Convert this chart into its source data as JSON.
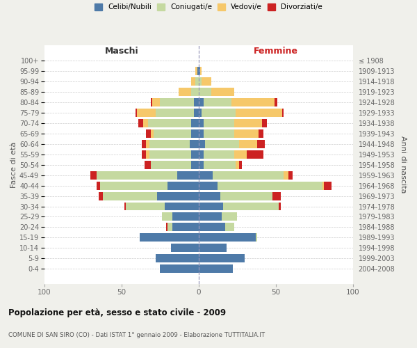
{
  "age_groups": [
    "100+",
    "95-99",
    "90-94",
    "85-89",
    "80-84",
    "75-79",
    "70-74",
    "65-69",
    "60-64",
    "55-59",
    "50-54",
    "45-49",
    "40-44",
    "35-39",
    "30-34",
    "25-29",
    "20-24",
    "15-19",
    "10-14",
    "5-9",
    "0-4"
  ],
  "birth_years": [
    "≤ 1908",
    "1909-1913",
    "1914-1918",
    "1919-1923",
    "1924-1928",
    "1929-1933",
    "1934-1938",
    "1939-1943",
    "1944-1948",
    "1949-1953",
    "1954-1958",
    "1959-1963",
    "1964-1968",
    "1969-1973",
    "1974-1978",
    "1979-1983",
    "1984-1988",
    "1989-1993",
    "1994-1998",
    "1999-2003",
    "2004-2008"
  ],
  "males": {
    "celibe": [
      0,
      1,
      0,
      0,
      3,
      3,
      5,
      5,
      6,
      5,
      5,
      14,
      20,
      27,
      22,
      17,
      17,
      38,
      18,
      28,
      25
    ],
    "coniugato": [
      0,
      0,
      2,
      5,
      22,
      25,
      28,
      24,
      26,
      27,
      26,
      52,
      44,
      35,
      25,
      7,
      3,
      0,
      0,
      0,
      0
    ],
    "vedovo": [
      0,
      1,
      3,
      8,
      5,
      12,
      3,
      2,
      2,
      2,
      0,
      0,
      0,
      0,
      0,
      0,
      0,
      0,
      0,
      0,
      0
    ],
    "divorziato": [
      0,
      0,
      0,
      0,
      1,
      1,
      3,
      3,
      3,
      3,
      4,
      4,
      2,
      3,
      1,
      0,
      1,
      0,
      0,
      0,
      0
    ]
  },
  "females": {
    "nubile": [
      0,
      1,
      0,
      0,
      3,
      2,
      3,
      3,
      4,
      3,
      3,
      9,
      12,
      14,
      16,
      15,
      17,
      37,
      18,
      30,
      22
    ],
    "coniugata": [
      0,
      0,
      2,
      8,
      18,
      22,
      20,
      20,
      22,
      20,
      21,
      46,
      68,
      34,
      36,
      10,
      6,
      1,
      0,
      0,
      0
    ],
    "vedova": [
      0,
      1,
      6,
      15,
      28,
      30,
      18,
      16,
      12,
      8,
      2,
      3,
      1,
      0,
      0,
      0,
      0,
      0,
      0,
      0,
      0
    ],
    "divorziata": [
      0,
      0,
      0,
      0,
      2,
      1,
      3,
      3,
      5,
      11,
      2,
      3,
      5,
      5,
      1,
      0,
      0,
      0,
      0,
      0,
      0
    ]
  },
  "colors": {
    "celibe": "#4e7aa8",
    "coniugato": "#c5d9a0",
    "vedovo": "#f6c86a",
    "divorziato": "#cc2222"
  },
  "xlim": 100,
  "title": "Popolazione per età, sesso e stato civile - 2009",
  "subtitle": "COMUNE DI SAN SIRO (CO) - Dati ISTAT 1° gennaio 2009 - Elaborazione TUTTITALIA.IT",
  "legend_labels": [
    "Celibi/Nubili",
    "Coniugati/e",
    "Vedovi/e",
    "Divorziati/e"
  ],
  "bg_color": "#f0f0eb",
  "plot_bg": "#ffffff",
  "maschi_label": "Maschi",
  "femmine_label": "Femmine",
  "fasce_label": "Fasce di età",
  "anni_label": "Anni di nascita"
}
